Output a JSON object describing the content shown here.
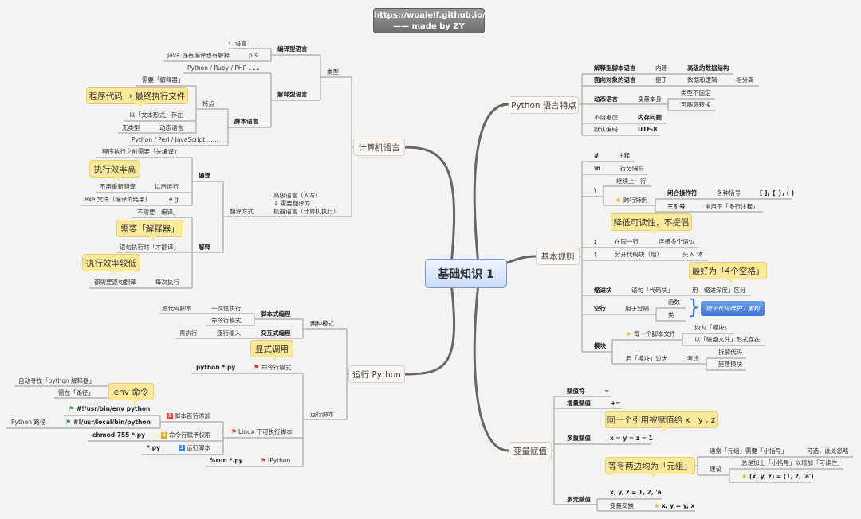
{
  "header": {
    "url": "https://woaielf.github.io/",
    "credit": "—— made by ZY"
  },
  "center": "基础知识 1",
  "branches": {
    "features": "Python 语言特点",
    "rules": "基本规则",
    "assign": "变量赋值",
    "computer": "计算机语言",
    "run": "运行 Python"
  },
  "features": [
    "解释型脚本语言",
    "内建",
    "高级的数据结构",
    "面向对象的语言",
    "便于",
    "数据和逻辑",
    "相分离",
    "动态语言",
    "变量本身",
    "类型不固定",
    "可随意转换",
    "不用考虑",
    "内存问题",
    "默认编码",
    "UTF-8"
  ],
  "rules": [
    "#",
    "注释",
    "\\n",
    "行分隔符",
    "\\",
    "继续上一行",
    "跨行特例",
    "闭合操作符",
    "各种括号",
    "[ ], { }, ( )",
    "三引号",
    "常用于「多行注释」",
    ";",
    "在同一行",
    "连接多个语句",
    ":",
    "分开代码块（组）",
    "头 & 体",
    "缩进块",
    "语句「代码块」",
    "用「缩进深度」区分",
    "空行",
    "用于分隔",
    "函数",
    "类",
    "模块",
    "每一个脚本文件",
    "均为「模块」",
    "以「磁盘文件」形式存在",
    "若「模块」过大",
    "考虑",
    "拆解代码",
    "另建模块"
  ],
  "rules_notes": {
    "callout1": "降低可读性，不提倡",
    "callout2": "最好为「4个空格」",
    "blue_box": "便于代码维护 / 重构"
  },
  "assign": [
    "赋值符",
    "=",
    "增量赋值",
    "+=",
    "多重赋值",
    "x = y = z = 1",
    "通常「元组」需要「小括号」",
    "可选，此处忽略",
    "建议",
    "总是加上「小括号」以增加「可读性」",
    "(x, y, z) = (1, 2, 'a')",
    "x, y, z = 1, 2, 'a'",
    "多元赋值",
    "变量交换",
    "x, y = y, x"
  ],
  "assign_notes": {
    "callout1": "同一个引用被赋值给 x , y , z",
    "callout2": "等号两边均为「元组」"
  },
  "computer": [
    "C 语言 ......",
    "Java 既有编译也有解释",
    "p.s.",
    "编译型语言",
    "Python / Ruby / PHP ......",
    "解释型语言",
    "需要「解释器」",
    "以「文本形式」存在",
    "无类型",
    "动态语言",
    "特点",
    "脚本语言",
    "Python / Perl / JavaScript ......",
    "类型",
    "程序执行之前需要「先编译」",
    "不用重新翻译",
    "以后运行",
    "exe 文件（编译的结果）",
    "e.g.",
    "编译",
    "不需要「编译」",
    "语句执行时「才翻译」",
    "解释",
    "都需要逐句翻译",
    "每次执行",
    "翻译方式",
    "高级语言（人写）",
    "↓ 需要翻译为",
    "机器语言（计算机执行）"
  ],
  "computer_notes": {
    "callout1": "程序代码 → 最终执行文件",
    "callout2": "执行效率高",
    "callout3": "需要「解释器」",
    "callout4": "执行效率较低"
  },
  "run": [
    "源代码脚本",
    "一次性执行",
    "命令行模式",
    "脚本式编程",
    "再执行",
    "逐行输入",
    "交互式编程",
    "两种模式",
    "python *.py",
    "命令行模式",
    "运行脚本",
    "自动寻找「python 解释器」",
    "需在「路径」",
    "#!/usr/bin/env python",
    "Python 路径",
    "#!/usr/local/bin/python",
    "脚本首行添加",
    "chmod 755 *.py",
    "命令行赋予权限",
    "*.py",
    "运行脚本",
    "Linux 下可执行脚本",
    "%run *.py",
    "IPython"
  ],
  "run_notes": {
    "callout1": "显式调用",
    "callout2": "env 命令"
  },
  "run_badges": [
    "1",
    "2",
    "3"
  ],
  "colors": {
    "callout": "#fbe99a",
    "center_border": "#6f9be0",
    "blue_box": "#3b74d6",
    "star": "#f0b400",
    "flag_red": "#e03030",
    "flag_green": "#2aa33a",
    "badge_1": "#e04a3a",
    "badge_2": "#f0a020",
    "badge_3": "#3a80e0"
  },
  "icons": {
    "star": "star-icon",
    "flag": "flag-icon",
    "badge": "priority-badge"
  }
}
